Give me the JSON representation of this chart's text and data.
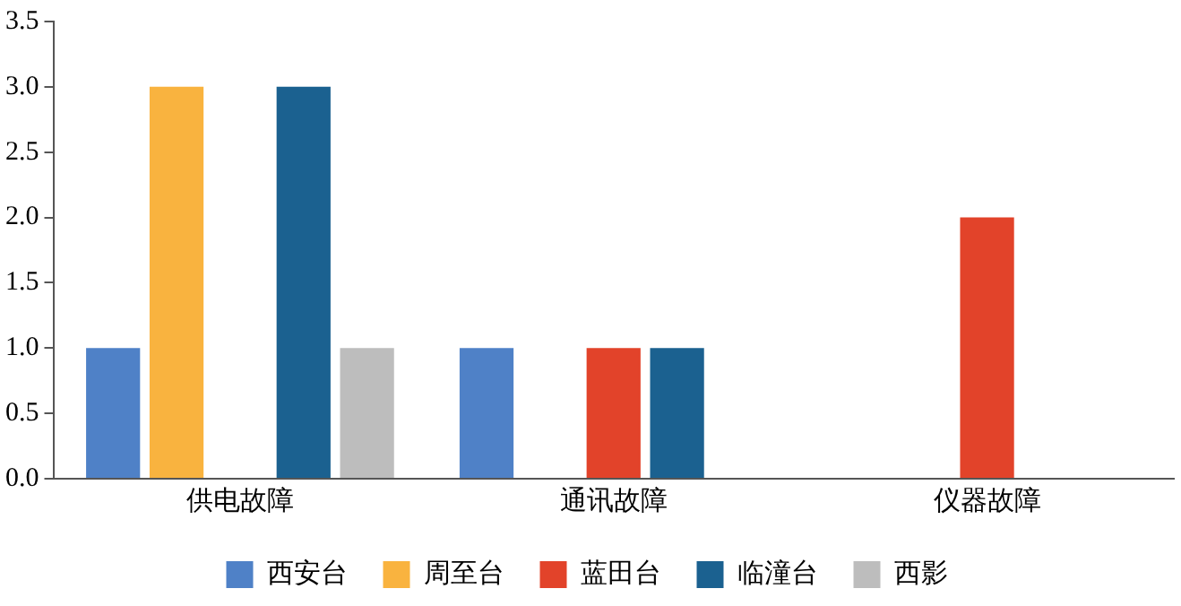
{
  "chart_data": {
    "type": "bar",
    "categories": [
      "供电故障",
      "通讯故障",
      "仪器故障"
    ],
    "series": [
      {
        "name": "西安台",
        "color": "#4f81c7",
        "values": [
          1,
          1,
          0
        ]
      },
      {
        "name": "周至台",
        "color": "#f9b33f",
        "values": [
          3,
          0,
          0
        ]
      },
      {
        "name": "蓝田台",
        "color": "#e2432a",
        "values": [
          0,
          1,
          2
        ]
      },
      {
        "name": "临潼台",
        "color": "#1b6190",
        "values": [
          3,
          1,
          0
        ]
      },
      {
        "name": "西影",
        "color": "#bdbdbd",
        "values": [
          1,
          0,
          0
        ]
      }
    ],
    "ylim": [
      0,
      3.5
    ],
    "yticks": [
      {
        "value": 0,
        "label": "0.0"
      },
      {
        "value": 0.5,
        "label": "0.5"
      },
      {
        "value": 1,
        "label": "1.0"
      },
      {
        "value": 1.5,
        "label": "1.5"
      },
      {
        "value": 2,
        "label": "2.0"
      },
      {
        "value": 2.5,
        "label": "2.5"
      },
      {
        "value": 3,
        "label": "3.0"
      },
      {
        "value": 3.5,
        "label": "3.5"
      }
    ],
    "grid": false,
    "legend": "bottom"
  }
}
